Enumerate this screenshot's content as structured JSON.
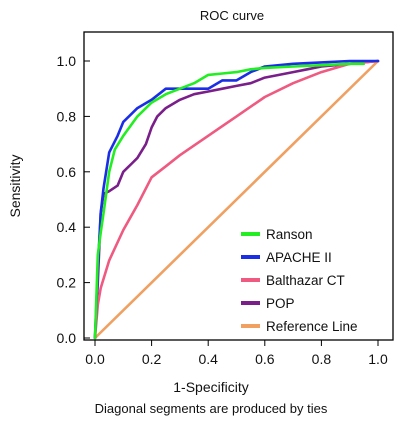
{
  "chart_data": {
    "type": "line",
    "title": "ROC  curve",
    "xlabel": "1-Specificity",
    "ylabel": "Sensitivity",
    "footnote": "Diagonal segments are produced by ties",
    "xlim": [
      0,
      1
    ],
    "ylim": [
      0,
      1
    ],
    "xticks": [
      "0.0",
      "0.2",
      "0.4",
      "0.6",
      "0.8",
      "1.0"
    ],
    "yticks": [
      "0.0",
      "0.2",
      "0.4",
      "0.6",
      "0.8",
      "1.0"
    ],
    "grid": false,
    "legend_position": "bottom-right",
    "series": [
      {
        "name": "Ranson",
        "color": "#22ee22",
        "x": [
          0.0,
          0.01,
          0.02,
          0.03,
          0.05,
          0.07,
          0.1,
          0.15,
          0.2,
          0.25,
          0.3,
          0.35,
          0.4,
          0.45,
          0.5,
          0.55,
          0.6,
          0.7,
          0.8,
          0.9,
          0.95
        ],
        "y": [
          0.0,
          0.3,
          0.38,
          0.45,
          0.6,
          0.68,
          0.73,
          0.8,
          0.85,
          0.88,
          0.9,
          0.92,
          0.95,
          0.955,
          0.96,
          0.97,
          0.975,
          0.98,
          0.985,
          0.99,
          0.99
        ]
      },
      {
        "name": "APACHE II",
        "color": "#1a2ee6",
        "x": [
          0.0,
          0.01,
          0.02,
          0.03,
          0.05,
          0.08,
          0.1,
          0.15,
          0.2,
          0.25,
          0.3,
          0.35,
          0.4,
          0.45,
          0.5,
          0.55,
          0.6,
          0.7,
          0.8,
          0.9,
          1.0
        ],
        "y": [
          0.0,
          0.25,
          0.45,
          0.54,
          0.67,
          0.73,
          0.78,
          0.83,
          0.86,
          0.9,
          0.9,
          0.9,
          0.9,
          0.93,
          0.93,
          0.96,
          0.98,
          0.99,
          0.995,
          1.0,
          1.0
        ]
      },
      {
        "name": "Balthazar CT",
        "color": "#ee5a80",
        "x": [
          0.0,
          0.01,
          0.02,
          0.05,
          0.1,
          0.15,
          0.2,
          0.25,
          0.3,
          0.4,
          0.5,
          0.6,
          0.7,
          0.8,
          0.9,
          1.0
        ],
        "y": [
          0.0,
          0.12,
          0.18,
          0.28,
          0.39,
          0.48,
          0.58,
          0.62,
          0.66,
          0.73,
          0.8,
          0.87,
          0.92,
          0.96,
          0.99,
          1.0
        ]
      },
      {
        "name": "POP",
        "color": "#7a1f8a",
        "x": [
          0.0,
          0.01,
          0.02,
          0.03,
          0.05,
          0.08,
          0.1,
          0.13,
          0.15,
          0.18,
          0.2,
          0.22,
          0.25,
          0.3,
          0.35,
          0.4,
          0.45,
          0.5,
          0.55,
          0.6,
          0.65,
          0.7,
          0.75,
          0.8,
          0.9,
          1.0
        ],
        "y": [
          0.0,
          0.2,
          0.45,
          0.52,
          0.53,
          0.55,
          0.6,
          0.63,
          0.65,
          0.7,
          0.76,
          0.8,
          0.83,
          0.86,
          0.88,
          0.89,
          0.9,
          0.91,
          0.92,
          0.94,
          0.95,
          0.96,
          0.97,
          0.98,
          0.99,
          1.0
        ]
      },
      {
        "name": "Reference Line",
        "color": "#f0a060",
        "x": [
          0.0,
          1.0
        ],
        "y": [
          0.0,
          1.0
        ]
      }
    ]
  }
}
